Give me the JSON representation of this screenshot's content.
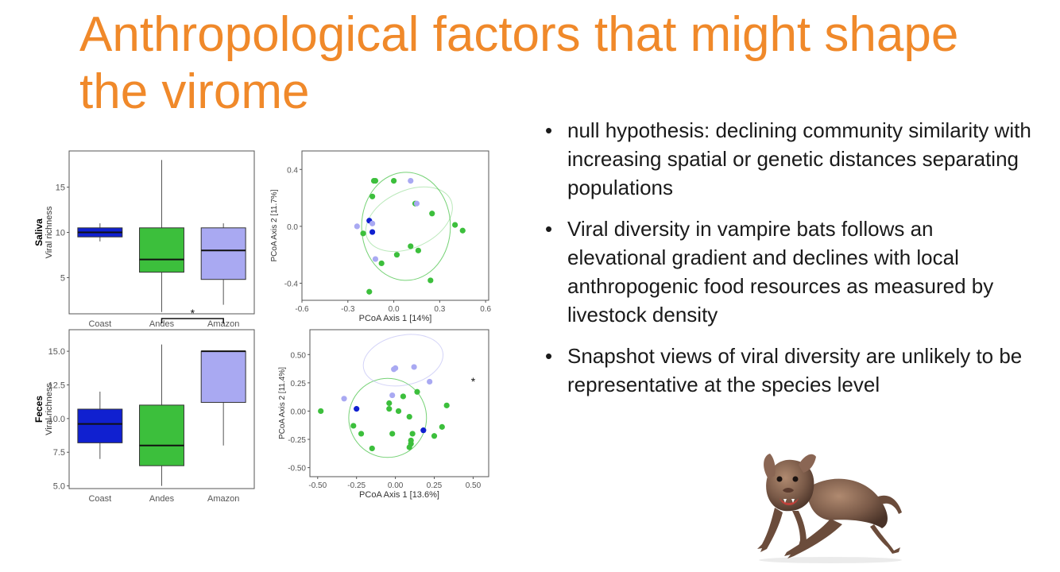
{
  "slide": {
    "title_lines": [
      "Anthropological factors that might shape",
      "the virome"
    ],
    "bullets": [
      "null hypothesis: declining community similarity with increasing spatial or genetic distances separating populations",
      "Viral diversity in vampire bats follows an elevational gradient and declines with local anthropogenic food resources as measured by livestock density",
      "Snapshot views of viral diversity are unlikely to be representative at the species level"
    ]
  },
  "colors": {
    "title": "#f0892a",
    "coast": "#1020d0",
    "andes": "#3cbf3c",
    "amazon": "#a9a9f2"
  },
  "chart_data": [
    {
      "type": "box",
      "panel": "saliva-box",
      "row_label": "Saliva",
      "ylabel": "Viral richness",
      "categories": [
        "Coast",
        "Andes",
        "Amazon"
      ],
      "yticks": [
        5,
        10,
        15
      ],
      "ylim": [
        1,
        19
      ],
      "boxes": [
        {
          "name": "Coast",
          "min": 9,
          "q1": 9.5,
          "median": 10,
          "q3": 10.5,
          "max": 11,
          "color": "#1020d0"
        },
        {
          "name": "Andes",
          "min": 1.2,
          "q1": 5.6,
          "median": 7,
          "q3": 10.5,
          "max": 18,
          "color": "#3cbf3c"
        },
        {
          "name": "Amazon",
          "min": 2,
          "q1": 4.8,
          "median": 8,
          "q3": 10.5,
          "max": 11,
          "color": "#a9a9f2"
        }
      ],
      "annotations": []
    },
    {
      "type": "scatter",
      "panel": "saliva-pcoa",
      "xlabel": "PCoA Axis 1 [14%]",
      "ylabel": "PCoA Axis 2 [11.7%]",
      "xlim": [
        -0.6,
        0.62
      ],
      "ylim": [
        -0.52,
        0.53
      ],
      "xticks": [
        -0.6,
        -0.3,
        0.0,
        0.3,
        0.6
      ],
      "xtick_labels": [
        "-0.6",
        "-0.3",
        "0.0",
        "0.3",
        "0.6"
      ],
      "yticks": [
        -0.4,
        0.0,
        0.4
      ],
      "ytick_labels": [
        "-0.4",
        "0.0",
        "0.4"
      ],
      "ellipses": [
        {
          "color": "#3cbf3c",
          "cx": 0.08,
          "cy": 0.0,
          "rx": 0.58,
          "ry": 0.38,
          "angle": 0,
          "opacity": 0.7
        },
        {
          "color": "#3cbf3c",
          "cx": 0.1,
          "cy": 0.05,
          "rx": 0.6,
          "ry": 0.2,
          "angle": 25,
          "opacity": 0.35
        }
      ],
      "series": [
        {
          "name": "Coast",
          "color": "#1020d0",
          "points": [
            [
              -0.16,
              0.04
            ],
            [
              -0.14,
              -0.04
            ]
          ]
        },
        {
          "name": "Andes",
          "color": "#3cbf3c",
          "points": [
            [
              -0.13,
              0.32
            ],
            [
              -0.12,
              0.32
            ],
            [
              0.0,
              0.32
            ],
            [
              -0.14,
              0.21
            ],
            [
              0.14,
              0.16
            ],
            [
              0.25,
              0.09
            ],
            [
              0.4,
              0.01
            ],
            [
              0.45,
              -0.03
            ],
            [
              -0.2,
              -0.05
            ],
            [
              0.11,
              -0.14
            ],
            [
              0.16,
              -0.17
            ],
            [
              -0.08,
              -0.26
            ],
            [
              0.02,
              -0.2
            ],
            [
              0.24,
              -0.38
            ],
            [
              -0.16,
              -0.46
            ]
          ]
        },
        {
          "name": "Amazon",
          "color": "#a9a9f2",
          "points": [
            [
              0.11,
              0.32
            ],
            [
              0.15,
              0.16
            ],
            [
              -0.24,
              0.0
            ],
            [
              -0.14,
              0.02
            ],
            [
              -0.12,
              -0.23
            ]
          ]
        }
      ],
      "annotations": []
    },
    {
      "type": "box",
      "panel": "feces-box",
      "row_label": "Feces",
      "ylabel": "Viral richness",
      "categories": [
        "Coast",
        "Andes",
        "Amazon"
      ],
      "yticks": [
        5.0,
        7.5,
        10.0,
        12.5,
        15.0
      ],
      "ytick_labels": [
        "5.0",
        "7.5",
        "10.0",
        "12.5",
        "15.0"
      ],
      "ylim": [
        4.8,
        16.6
      ],
      "boxes": [
        {
          "name": "Coast",
          "min": 7,
          "q1": 8.2,
          "median": 9.6,
          "q3": 10.7,
          "max": 12,
          "color": "#1020d0"
        },
        {
          "name": "Andes",
          "min": 5,
          "q1": 6.5,
          "median": 8,
          "q3": 11,
          "max": 15.5,
          "color": "#3cbf3c"
        },
        {
          "name": "Amazon",
          "min": 8,
          "q1": 11.2,
          "median": 15,
          "q3": 15,
          "max": 15,
          "color": "#a9a9f2"
        }
      ],
      "annotations": [
        {
          "text": "*",
          "from": "Andes",
          "to": "Amazon"
        }
      ]
    },
    {
      "type": "scatter",
      "panel": "feces-pcoa",
      "xlabel": "PCoA Axis 1 [13.6%]",
      "ylabel": "PCoA Axis 2 [11.4%]",
      "xlim": [
        -0.55,
        0.6
      ],
      "ylim": [
        -0.58,
        0.72
      ],
      "xticks": [
        -0.5,
        -0.25,
        0.0,
        0.25,
        0.5
      ],
      "xtick_labels": [
        "-0.50",
        "-0.25",
        "0.00",
        "0.25",
        "0.50"
      ],
      "yticks": [
        -0.5,
        -0.25,
        0.0,
        0.25,
        0.5
      ],
      "ytick_labels": [
        "-0.50",
        "-0.25",
        "0.00",
        "0.25",
        "0.50"
      ],
      "ellipses": [
        {
          "color": "#3cbf3c",
          "cx": -0.05,
          "cy": -0.06,
          "rx": 0.5,
          "ry": 0.35,
          "angle": 0,
          "opacity": 0.7
        },
        {
          "color": "#a9a9f2",
          "cx": 0.05,
          "cy": 0.45,
          "rx": 0.52,
          "ry": 0.22,
          "angle": 12,
          "opacity": 0.5
        }
      ],
      "series": [
        {
          "name": "Coast",
          "color": "#1020d0",
          "points": [
            [
              -0.25,
              0.02
            ],
            [
              0.18,
              -0.17
            ]
          ]
        },
        {
          "name": "Andes",
          "color": "#3cbf3c",
          "points": [
            [
              -0.48,
              0.0
            ],
            [
              -0.04,
              0.07
            ],
            [
              0.05,
              0.13
            ],
            [
              0.14,
              0.17
            ],
            [
              -0.04,
              0.02
            ],
            [
              0.02,
              0.0
            ],
            [
              0.09,
              -0.05
            ],
            [
              0.33,
              0.05
            ],
            [
              -0.27,
              -0.13
            ],
            [
              -0.22,
              -0.2
            ],
            [
              0.3,
              -0.14
            ],
            [
              -0.02,
              -0.2
            ],
            [
              0.11,
              -0.2
            ],
            [
              0.1,
              -0.26
            ],
            [
              0.1,
              -0.29
            ],
            [
              0.25,
              -0.22
            ],
            [
              -0.15,
              -0.33
            ],
            [
              0.09,
              -0.32
            ]
          ]
        },
        {
          "name": "Amazon",
          "color": "#a9a9f2",
          "points": [
            [
              -0.01,
              0.37
            ],
            [
              0.0,
              0.38
            ],
            [
              0.12,
              0.39
            ],
            [
              0.22,
              0.26
            ],
            [
              -0.33,
              0.11
            ],
            [
              -0.02,
              0.14
            ]
          ]
        }
      ],
      "annotations": [
        {
          "text": "*",
          "x": 0.5,
          "y": 0.27
        }
      ]
    }
  ]
}
